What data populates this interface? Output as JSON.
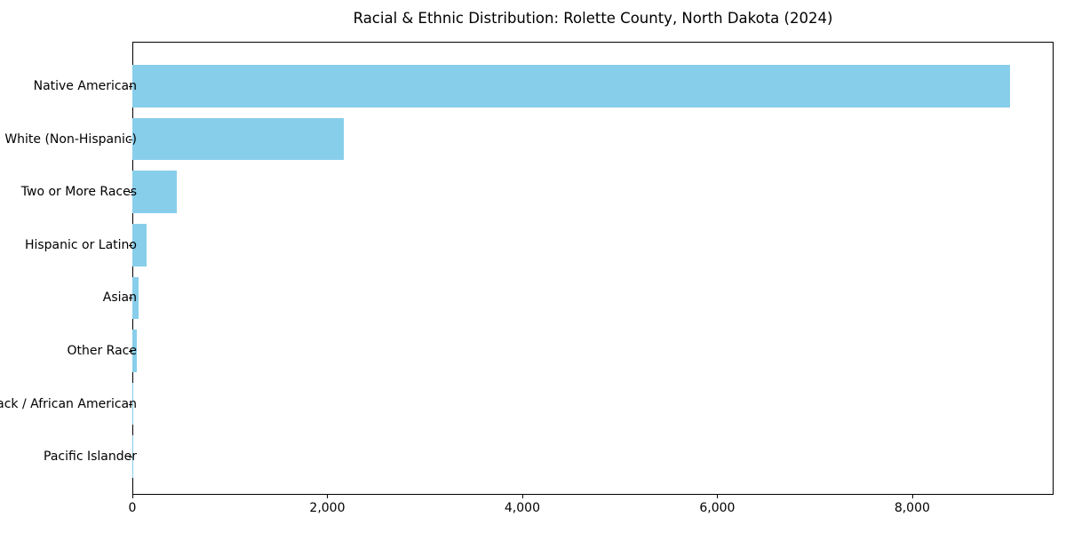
{
  "chart_data": {
    "type": "bar",
    "orientation": "horizontal",
    "title": "Racial & Ethnic Distribution: Rolette County, North Dakota (2024)",
    "categories": [
      "Native American",
      "White (Non-Hispanic)",
      "Two or More Races",
      "Hispanic or Latino",
      "Asian",
      "Other Race",
      "Black / African American",
      "Pacific Islander"
    ],
    "values": [
      9000,
      2170,
      460,
      150,
      65,
      45,
      10,
      3
    ],
    "xlabel": "",
    "ylabel": "",
    "xlim": [
      0,
      9450
    ],
    "xticks": [
      0,
      2000,
      4000,
      6000,
      8000
    ],
    "xtick_labels": [
      "0",
      "2,000",
      "4,000",
      "6,000",
      "8,000"
    ],
    "bar_color": "#87CEEB",
    "background_color": "#ffffff",
    "text_color": "#000000",
    "grid": false,
    "legend_position": "none"
  }
}
